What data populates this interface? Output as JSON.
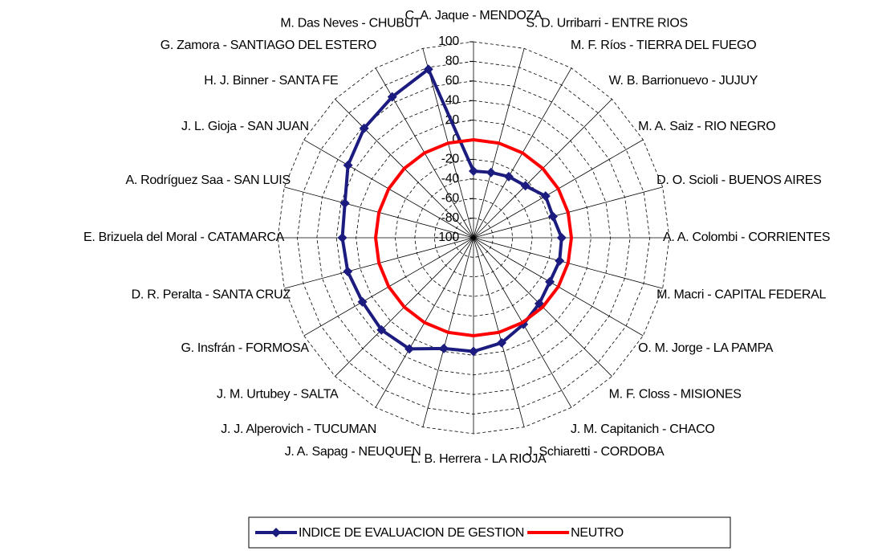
{
  "chart_data": {
    "type": "radar",
    "categories": [
      "C. A. Jaque - MENDOZA",
      "S. D. Urribarri - ENTRE RIOS",
      "M. F. Ríos - TIERRA DEL FUEGO",
      "W. B. Barrionuevo - JUJUY",
      "M. A. Saiz - RIO NEGRO",
      "D. O. Scioli - BUENOS AIRES",
      "A. A. Colombi - CORRIENTES",
      "M. Macri - CAPITAL FEDERAL",
      "O. M. Jorge - LA PAMPA",
      "M. F. Closs - MISIONES",
      "J. M. Capitanich - CHACO",
      "J. Schiaretti - CORDOBA",
      "L. B. Herrera - LA RIOJA",
      "J. A. Sapag - NEUQUEN",
      "J. J. Alperovich - TUCUMAN",
      "J. M. Urtubey - SALTA",
      "G. Insfrán - FORMOSA",
      "D. R. Peralta - SANTA CRUZ",
      "E. Brizuela del Moral - CATAMARCA",
      "A. Rodríguez Saa - SAN LUIS",
      "J. L. Gioja - SAN JUAN",
      "H. J. Binner - SANTA FE",
      "G. Zamora - SANTIAGO DEL ESTERO",
      "M. Das Neves - CHUBUT"
    ],
    "series": [
      {
        "name": "INDICE DE EVALUACION DE GESTION",
        "color": "#1c1c80",
        "values": [
          -32,
          -31,
          -28,
          -25,
          -15,
          -16,
          -10,
          -9,
          -10,
          -5,
          2,
          11,
          16,
          17,
          31,
          33,
          31,
          33,
          34,
          36,
          48,
          58,
          66,
          78
        ]
      },
      {
        "name": "NEUTRO",
        "color": "#ff0000",
        "values": [
          0,
          0,
          0,
          0,
          0,
          0,
          0,
          0,
          0,
          0,
          0,
          0,
          0,
          0,
          0,
          0,
          0,
          0,
          0,
          0,
          0,
          0,
          0,
          0
        ]
      }
    ],
    "ylim": [
      -100,
      100
    ],
    "yticks": [
      -100,
      -80,
      -60,
      -40,
      -20,
      0,
      20,
      40,
      60,
      80,
      100
    ],
    "grid": true,
    "legend": "bottom"
  }
}
